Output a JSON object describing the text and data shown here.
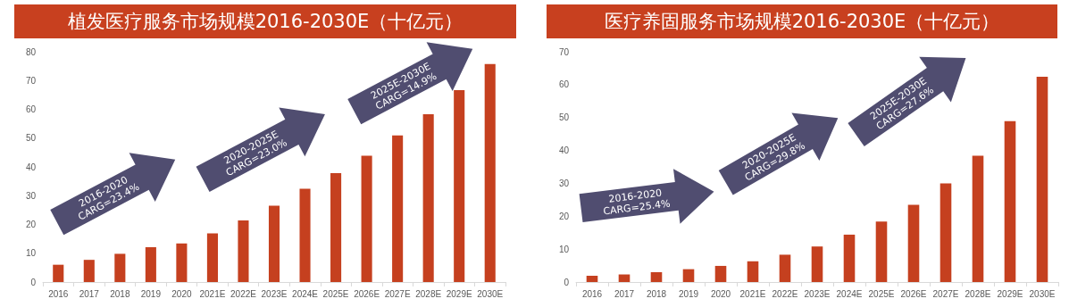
{
  "chart_data": [
    {
      "type": "bar",
      "title": "植发医疗服务市场规模2016-2030E（十亿元）",
      "categories": [
        "2016",
        "2017",
        "2018",
        "2019",
        "2020",
        "2021E",
        "2022E",
        "2023E",
        "2024E",
        "2025E",
        "2026E",
        "2027E",
        "2028E",
        "2029E",
        "2030E"
      ],
      "values": [
        6.0,
        7.7,
        9.8,
        12.1,
        13.4,
        16.9,
        21.4,
        26.5,
        32.4,
        37.8,
        43.9,
        50.9,
        58.3,
        66.7,
        75.7
      ],
      "color": "#c5401f",
      "ylim": [
        0,
        80
      ],
      "yticks": [
        0,
        10,
        20,
        30,
        40,
        50,
        60,
        70,
        80
      ],
      "grid": false,
      "annotations": [
        "2016-2020\nCARG=23.4%",
        "2020-2025E\nCARG=23.0%",
        "2025E-2030E\nCARG=14.9%"
      ]
    },
    {
      "type": "bar",
      "title": "医疗养固服务市场规模2016-2030E（十亿元）",
      "categories": [
        "2016",
        "2017",
        "2018",
        "2019",
        "2020",
        "2021E",
        "2022E",
        "2023E",
        "2024E",
        "2025E",
        "2026E",
        "2027E",
        "2028E",
        "2029E",
        "2030E"
      ],
      "values": [
        1.9,
        2.3,
        3.0,
        3.9,
        4.9,
        6.3,
        8.3,
        10.8,
        14.4,
        18.4,
        23.5,
        30.0,
        38.4,
        48.9,
        62.4
      ],
      "color": "#c5401f",
      "ylim": [
        0,
        70
      ],
      "yticks": [
        0,
        10,
        20,
        30,
        40,
        50,
        60,
        70
      ],
      "grid": false,
      "annotations": [
        "2016-2020\nCARG=25.4%",
        "2020-2025E\nCARG=29.8%",
        "2025E-2030E\nCARG=27.6%"
      ]
    }
  ]
}
